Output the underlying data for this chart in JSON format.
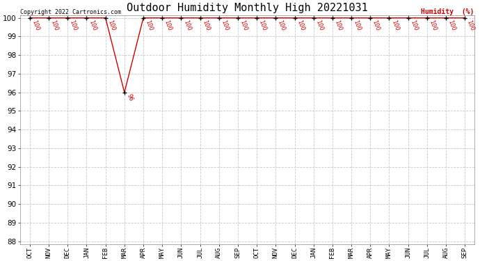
{
  "title": "Outdoor Humidity Monthly High 20221031",
  "ylabel": "Humidity  (%)",
  "ylabel_color": "#cc0000",
  "copyright_text": "Copyright 2022 Cartronics.com",
  "x_labels": [
    "OCT",
    "NOV",
    "DEC",
    "JAN",
    "FEB",
    "MAR",
    "APR",
    "MAY",
    "JUN",
    "JUL",
    "AUG",
    "SEP",
    "OCT",
    "NOV",
    "DEC",
    "JAN",
    "FEB",
    "MAR",
    "APR",
    "MAY",
    "JUN",
    "JUL",
    "AUG",
    "SEP"
  ],
  "y_values": [
    100,
    100,
    100,
    100,
    100,
    96,
    100,
    100,
    100,
    100,
    100,
    100,
    100,
    100,
    100,
    100,
    100,
    100,
    100,
    100,
    100,
    100,
    100,
    100
  ],
  "ylim_min": 88,
  "ylim_max": 100,
  "yticks": [
    88,
    89,
    90,
    91,
    92,
    93,
    94,
    95,
    96,
    97,
    98,
    99,
    100
  ],
  "line_color": "#cc0000",
  "marker": "+",
  "marker_color": "#000000",
  "data_label_color": "#cc0000",
  "data_label_fontsize": 6,
  "grid_color": "#c8c8c8",
  "grid_style": "--",
  "background_color": "#ffffff",
  "title_fontsize": 11,
  "xlabel_fontsize": 6.5,
  "ytick_fontsize": 7.5,
  "copyright_fontsize": 6,
  "ylabel_label_fontsize": 7,
  "line_width": 1.0,
  "marker_size": 4
}
